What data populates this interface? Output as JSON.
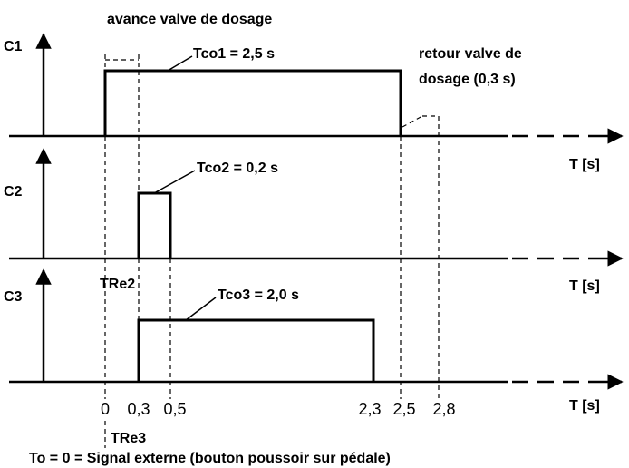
{
  "title": "avance valve de dosage",
  "channels": [
    {
      "label": "C1",
      "pulse": "Tco1 = 2,5 s"
    },
    {
      "label": "C2",
      "pulse": "Tco2 = 0,2 s"
    },
    {
      "label": "C3",
      "pulse": "Tco3 = 2,0 s"
    }
  ],
  "return_note": [
    "retour valve de",
    "dosage (0,3 s)"
  ],
  "axis_label": "T [s]",
  "ticks": [
    "0",
    "0,3",
    "0,5",
    "2,3",
    "2,5",
    "2,8"
  ],
  "markers": [
    "TRe2",
    "TRe3"
  ],
  "footnote": "To = 0 = Signal externe (bouton poussoir sur pédale)"
}
